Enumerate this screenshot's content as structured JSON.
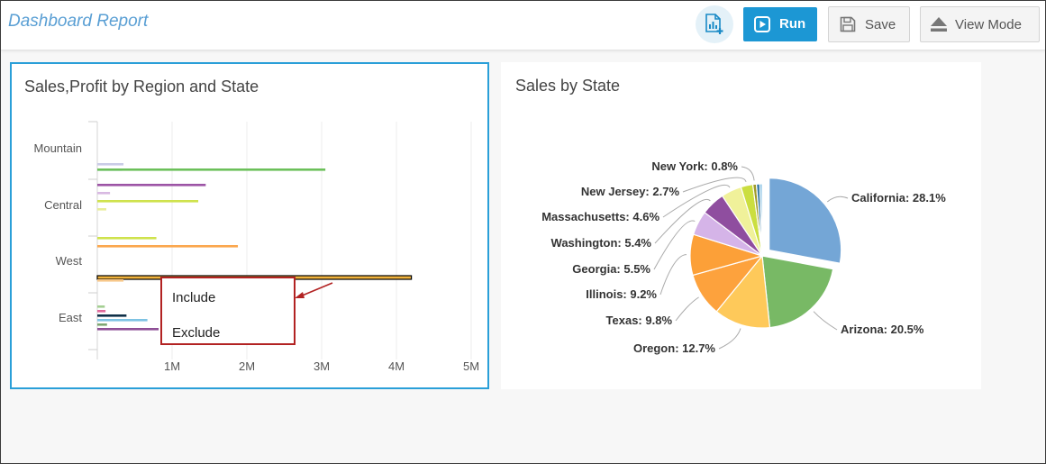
{
  "header": {
    "title": "Dashboard Report",
    "run_label": "Run",
    "save_label": "Save",
    "view_mode_label": "View Mode"
  },
  "colors": {
    "accent": "#1c97d4",
    "selected_border": "#2a9fd8",
    "callout": "#b22222"
  },
  "left_panel": {
    "title": "Sales,Profit by Region and State",
    "context_menu": [
      "Include",
      "Exclude"
    ]
  },
  "right_panel": {
    "title": "Sales by State"
  },
  "chart_data": [
    {
      "type": "bar",
      "orientation": "horizontal",
      "title": "Sales,Profit by Region and State",
      "categories": [
        "Mountain",
        "Central",
        "West",
        "East"
      ],
      "x_ticks": [
        "1M",
        "2M",
        "3M",
        "4M",
        "5M"
      ],
      "xlim": [
        0,
        5000000
      ],
      "grid": true,
      "bars": [
        {
          "category": "Mountain",
          "value": 350000,
          "color": "#c9cbe6"
        },
        {
          "category": "Mountain",
          "value": 330000,
          "color": "#7eb6d8"
        },
        {
          "category": "Mountain",
          "value": 3050000,
          "color": "#6cc05a"
        },
        {
          "category": "Central",
          "value": 1450000,
          "color": "#9c54a5"
        },
        {
          "category": "Central",
          "value": 170000,
          "color": "#d8b9e2"
        },
        {
          "category": "Central",
          "value": 1350000,
          "color": "#cfe24d"
        },
        {
          "category": "Central",
          "value": 120000,
          "color": "#e8ee9a"
        },
        {
          "category": "West",
          "value": 790000,
          "color": "#cfe24d"
        },
        {
          "category": "West",
          "value": 1880000,
          "color": "#fba74d"
        },
        {
          "category": "West",
          "value": 4200000,
          "color": "#f0b23c",
          "selected": true
        },
        {
          "category": "West",
          "value": 350000,
          "color": "#f7c78a"
        },
        {
          "category": "East",
          "value": 100000,
          "color": "#a4cf92"
        },
        {
          "category": "East",
          "value": 110000,
          "color": "#e0699b"
        },
        {
          "category": "East",
          "value": 390000,
          "color": "#0f3048"
        },
        {
          "category": "East",
          "value": 670000,
          "color": "#7ec3e3"
        },
        {
          "category": "East",
          "value": 130000,
          "color": "#7ea772"
        },
        {
          "category": "East",
          "value": 820000,
          "color": "#8e4f96"
        }
      ]
    },
    {
      "type": "pie",
      "title": "Sales by State",
      "slices": [
        {
          "label": "California",
          "value": 28.1,
          "color": "#74a6d6",
          "exploded": true
        },
        {
          "label": "Arizona",
          "value": 20.5,
          "color": "#78b965"
        },
        {
          "label": "Oregon",
          "value": 12.7,
          "color": "#fec95a"
        },
        {
          "label": "Texas",
          "value": 9.8,
          "color": "#fda23d"
        },
        {
          "label": "Illinois",
          "value": 9.2,
          "color": "#fca038"
        },
        {
          "label": "Georgia",
          "value": 5.5,
          "color": "#d5b4e8"
        },
        {
          "label": "Washington",
          "value": 5.4,
          "color": "#8f4e9f"
        },
        {
          "label": "Massachusetts",
          "value": 4.6,
          "color": "#f0f19a"
        },
        {
          "label": "New Jersey",
          "value": 2.7,
          "color": "#cbde40"
        },
        {
          "label": "New York",
          "value": 0.8,
          "color": "#a09a28"
        }
      ],
      "label_format": "{label}: {value}%",
      "extra_slices_colors": [
        "#3f7fa9",
        "#6ab3dd"
      ]
    }
  ]
}
